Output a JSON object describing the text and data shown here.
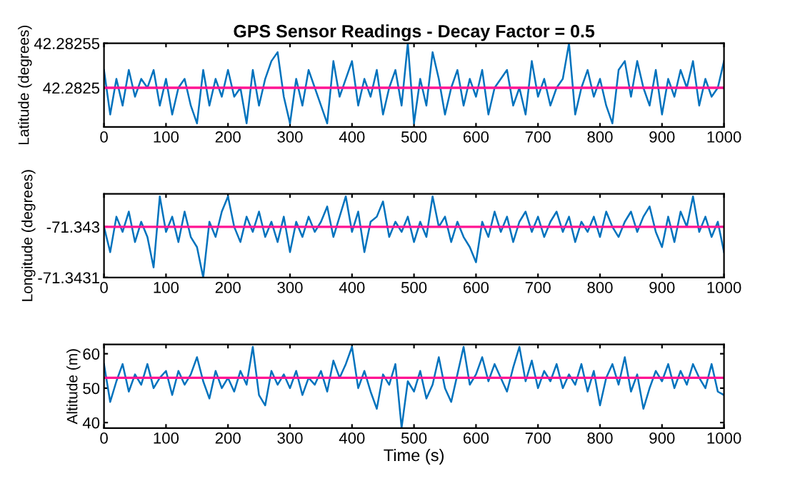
{
  "chart_data": [
    {
      "type": "line",
      "title": "GPS Sensor Readings - Decay Factor = 0.5",
      "ylabel": "Latitude (degrees)",
      "x": [
        0,
        10,
        20,
        30,
        40,
        50,
        60,
        70,
        80,
        90,
        100,
        110,
        120,
        130,
        140,
        150,
        160,
        170,
        180,
        190,
        200,
        210,
        220,
        230,
        240,
        250,
        260,
        270,
        280,
        290,
        300,
        310,
        320,
        330,
        340,
        350,
        360,
        370,
        380,
        390,
        400,
        410,
        420,
        430,
        440,
        450,
        460,
        470,
        480,
        490,
        500,
        510,
        520,
        530,
        540,
        550,
        560,
        570,
        580,
        590,
        600,
        610,
        620,
        630,
        640,
        650,
        660,
        670,
        680,
        690,
        700,
        710,
        720,
        730,
        740,
        750,
        760,
        770,
        780,
        790,
        800,
        810,
        820,
        830,
        840,
        850,
        860,
        870,
        880,
        890,
        900,
        910,
        920,
        930,
        940,
        950,
        960,
        970,
        980,
        990,
        1000
      ],
      "series": [
        {
          "color": "#0072bd",
          "values": [
            42.28252,
            42.28247,
            42.28251,
            42.28248,
            42.28252,
            42.28249,
            42.28251,
            42.2825,
            42.28252,
            42.28248,
            42.28251,
            42.28247,
            42.2825,
            42.28251,
            42.28248,
            42.28246,
            42.28252,
            42.28248,
            42.28251,
            42.28249,
            42.28252,
            42.28249,
            42.2825,
            42.28246,
            42.28252,
            42.28248,
            42.28251,
            42.28253,
            42.28254,
            42.28249,
            42.28246,
            42.28251,
            42.28248,
            42.28252,
            42.2825,
            42.28248,
            42.28246,
            42.28253,
            42.28249,
            42.28251,
            42.28253,
            42.28248,
            42.28251,
            42.28249,
            42.28252,
            42.28247,
            42.2825,
            42.28252,
            42.28248,
            42.28255,
            42.28246,
            42.28251,
            42.28248,
            42.28254,
            42.28251,
            42.28247,
            42.2825,
            42.28252,
            42.28248,
            42.28251,
            42.28249,
            42.28252,
            42.28247,
            42.2825,
            42.28251,
            42.28252,
            42.28248,
            42.2825,
            42.28247,
            42.28253,
            42.28249,
            42.28251,
            42.28248,
            42.2825,
            42.28251,
            42.28255,
            42.28247,
            42.2825,
            42.28252,
            42.28249,
            42.28251,
            42.28248,
            42.28246,
            42.28252,
            42.28253,
            42.28249,
            42.28253,
            42.2825,
            42.28248,
            42.28252,
            42.28247,
            42.28251,
            42.28249,
            42.28252,
            42.2825,
            42.28253,
            42.28248,
            42.28251,
            42.28249,
            42.2825,
            42.28253
          ]
        }
      ],
      "ref_lines": [
        {
          "axis": "y",
          "value": 42.2825,
          "color": "#ff1493"
        }
      ],
      "xlim": [
        0,
        1000
      ],
      "xticks": [
        0,
        100,
        200,
        300,
        400,
        500,
        600,
        700,
        800,
        900,
        1000
      ],
      "ylim": [
        42.282456,
        42.28255
      ],
      "yticks": [
        42.2825,
        42.28255
      ],
      "grid": false,
      "legend": false
    },
    {
      "type": "line",
      "ylabel": "Longitude (degrees)",
      "x": [
        0,
        10,
        20,
        30,
        40,
        50,
        60,
        70,
        80,
        90,
        100,
        110,
        120,
        130,
        140,
        150,
        160,
        170,
        180,
        190,
        200,
        210,
        220,
        230,
        240,
        250,
        260,
        270,
        280,
        290,
        300,
        310,
        320,
        330,
        340,
        350,
        360,
        370,
        380,
        390,
        400,
        410,
        420,
        430,
        440,
        450,
        460,
        470,
        480,
        490,
        500,
        510,
        520,
        530,
        540,
        550,
        560,
        570,
        580,
        590,
        600,
        610,
        620,
        630,
        640,
        650,
        660,
        670,
        680,
        690,
        700,
        710,
        720,
        730,
        740,
        750,
        760,
        770,
        780,
        790,
        800,
        810,
        820,
        830,
        840,
        850,
        860,
        870,
        880,
        890,
        900,
        910,
        920,
        930,
        940,
        950,
        960,
        970,
        980,
        990,
        1000
      ],
      "series": [
        {
          "color": "#0072bd",
          "values": [
            -71.343,
            -71.34305,
            -71.34298,
            -71.34301,
            -71.34297,
            -71.34303,
            -71.34299,
            -71.34302,
            -71.34308,
            -71.34294,
            -71.34301,
            -71.34298,
            -71.34303,
            -71.34297,
            -71.34302,
            -71.34304,
            -71.3431,
            -71.34299,
            -71.34302,
            -71.34297,
            -71.34294,
            -71.343,
            -71.34303,
            -71.34298,
            -71.34301,
            -71.34297,
            -71.34302,
            -71.34299,
            -71.34303,
            -71.34298,
            -71.34305,
            -71.34299,
            -71.34302,
            -71.34298,
            -71.34301,
            -71.34299,
            -71.34296,
            -71.34302,
            -71.34298,
            -71.34294,
            -71.34301,
            -71.34297,
            -71.34305,
            -71.34299,
            -71.34298,
            -71.34295,
            -71.34302,
            -71.34299,
            -71.34301,
            -71.34298,
            -71.34303,
            -71.34299,
            -71.34302,
            -71.34294,
            -71.343,
            -71.34298,
            -71.34303,
            -71.34299,
            -71.34302,
            -71.34304,
            -71.34307,
            -71.34299,
            -71.34302,
            -71.34297,
            -71.34301,
            -71.34298,
            -71.34303,
            -71.34299,
            -71.34297,
            -71.34301,
            -71.34298,
            -71.34302,
            -71.34299,
            -71.34297,
            -71.34301,
            -71.34298,
            -71.34303,
            -71.34299,
            -71.34301,
            -71.34298,
            -71.34302,
            -71.34297,
            -71.343,
            -71.34302,
            -71.34299,
            -71.34297,
            -71.34301,
            -71.34298,
            -71.34296,
            -71.34301,
            -71.34304,
            -71.34298,
            -71.34303,
            -71.34297,
            -71.343,
            -71.34294,
            -71.34301,
            -71.34298,
            -71.34302,
            -71.34299,
            -71.34305
          ]
        }
      ],
      "ref_lines": [
        {
          "axis": "y",
          "value": -71.343,
          "color": "#ff1493"
        }
      ],
      "xlim": [
        0,
        1000
      ],
      "xticks": [
        0,
        100,
        200,
        300,
        400,
        500,
        600,
        700,
        800,
        900,
        1000
      ],
      "ylim": [
        -71.3431,
        -71.342935
      ],
      "yticks": [
        -71.3431,
        -71.343
      ],
      "grid": false,
      "legend": false
    },
    {
      "type": "line",
      "xlabel": "Time (s)",
      "ylabel": "Altitude (m)",
      "x": [
        0,
        10,
        20,
        30,
        40,
        50,
        60,
        70,
        80,
        90,
        100,
        110,
        120,
        130,
        140,
        150,
        160,
        170,
        180,
        190,
        200,
        210,
        220,
        230,
        240,
        250,
        260,
        270,
        280,
        290,
        300,
        310,
        320,
        330,
        340,
        350,
        360,
        370,
        380,
        390,
        400,
        410,
        420,
        430,
        440,
        450,
        460,
        470,
        480,
        490,
        500,
        510,
        520,
        530,
        540,
        550,
        560,
        570,
        580,
        590,
        600,
        610,
        620,
        630,
        640,
        650,
        660,
        670,
        680,
        690,
        700,
        710,
        720,
        730,
        740,
        750,
        760,
        770,
        780,
        790,
        800,
        810,
        820,
        830,
        840,
        850,
        860,
        870,
        880,
        890,
        900,
        910,
        920,
        930,
        940,
        950,
        960,
        970,
        980,
        990,
        1000
      ],
      "series": [
        {
          "color": "#0072bd",
          "values": [
            57,
            46,
            52,
            57,
            49,
            54,
            51,
            57,
            50,
            53,
            55,
            48,
            55,
            51,
            54,
            59,
            52,
            47,
            55,
            50,
            53,
            49,
            55,
            51,
            62,
            48,
            45,
            55,
            51,
            54,
            50,
            55,
            48,
            53,
            51,
            55,
            49,
            58,
            53,
            57,
            62,
            50,
            55,
            49,
            44,
            54,
            51,
            57,
            38.5,
            52,
            49,
            55,
            47,
            51,
            59,
            50,
            46,
            54,
            62,
            51,
            54,
            59,
            52,
            57,
            53,
            49,
            56,
            62,
            52,
            58,
            50,
            55,
            52,
            57,
            50,
            54,
            51,
            57,
            49,
            55,
            45,
            53,
            57,
            51,
            59,
            49,
            54,
            44,
            50,
            55,
            52,
            57,
            50,
            55,
            51,
            57,
            53,
            50,
            57,
            49,
            48
          ]
        }
      ],
      "ref_lines": [
        {
          "axis": "y",
          "value": 53,
          "color": "#ff1493"
        }
      ],
      "xlim": [
        0,
        1000
      ],
      "xticks": [
        0,
        100,
        200,
        300,
        400,
        500,
        600,
        700,
        800,
        900,
        1000
      ],
      "ylim": [
        38.4,
        62.7
      ],
      "yticks": [
        40,
        50,
        60
      ],
      "grid": false,
      "legend": false
    }
  ]
}
